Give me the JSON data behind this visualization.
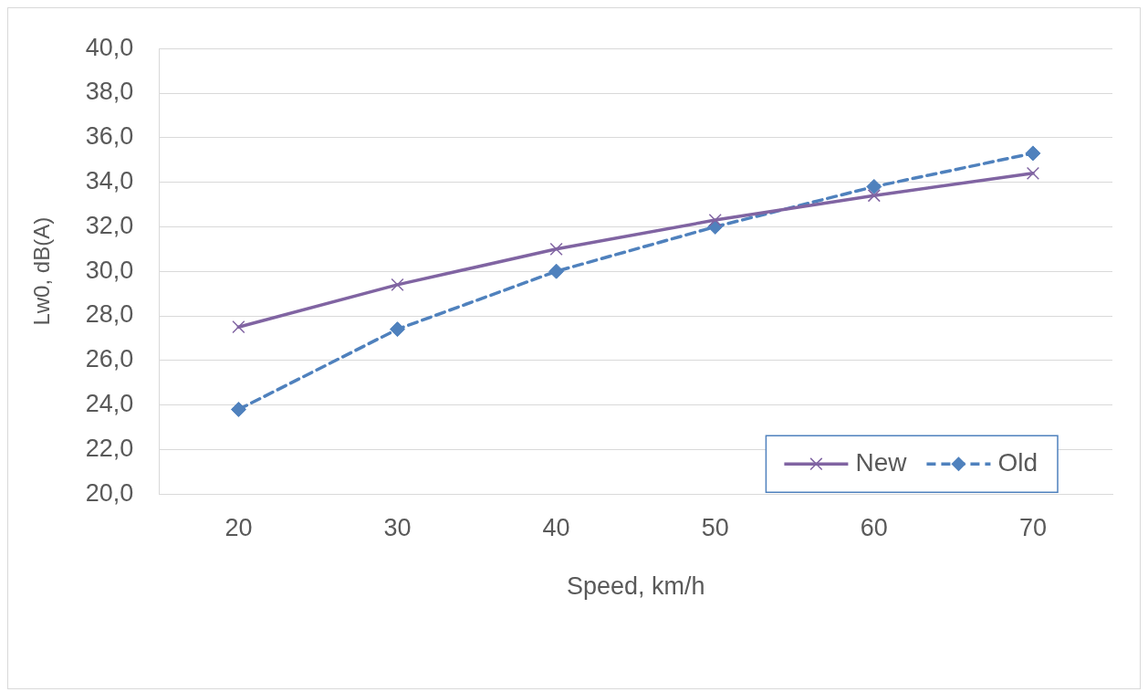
{
  "chart_data": {
    "type": "line",
    "xlabel": "Speed, km/h",
    "ylabel": "Lw0, dB(A)",
    "categories": [
      "20",
      "30",
      "40",
      "50",
      "60",
      "70"
    ],
    "series": [
      {
        "name": "New",
        "color": "#8064a2",
        "values": [
          27.5,
          29.4,
          31.0,
          32.3,
          33.4,
          34.4
        ],
        "marker": "cross",
        "line_style": "solid"
      },
      {
        "name": "Old",
        "color": "#4f81bd",
        "values": [
          23.8,
          27.4,
          30.0,
          32.0,
          33.8,
          35.3
        ],
        "marker": "diamond",
        "line_style": "dashed"
      }
    ],
    "ylim": [
      20,
      40
    ],
    "yticks": [
      {
        "value": 20,
        "label": "20,0"
      },
      {
        "value": 22,
        "label": "22,0"
      },
      {
        "value": 24,
        "label": "24,0"
      },
      {
        "value": 26,
        "label": "26,0"
      },
      {
        "value": 28,
        "label": "28,0"
      },
      {
        "value": 30,
        "label": "30,0"
      },
      {
        "value": 32,
        "label": "32,0"
      },
      {
        "value": 34,
        "label": "34,0"
      },
      {
        "value": 36,
        "label": "36,0"
      },
      {
        "value": 38,
        "label": "38,0"
      },
      {
        "value": 40,
        "label": "40,0"
      }
    ],
    "grid": "y",
    "legend": "bottom right"
  }
}
